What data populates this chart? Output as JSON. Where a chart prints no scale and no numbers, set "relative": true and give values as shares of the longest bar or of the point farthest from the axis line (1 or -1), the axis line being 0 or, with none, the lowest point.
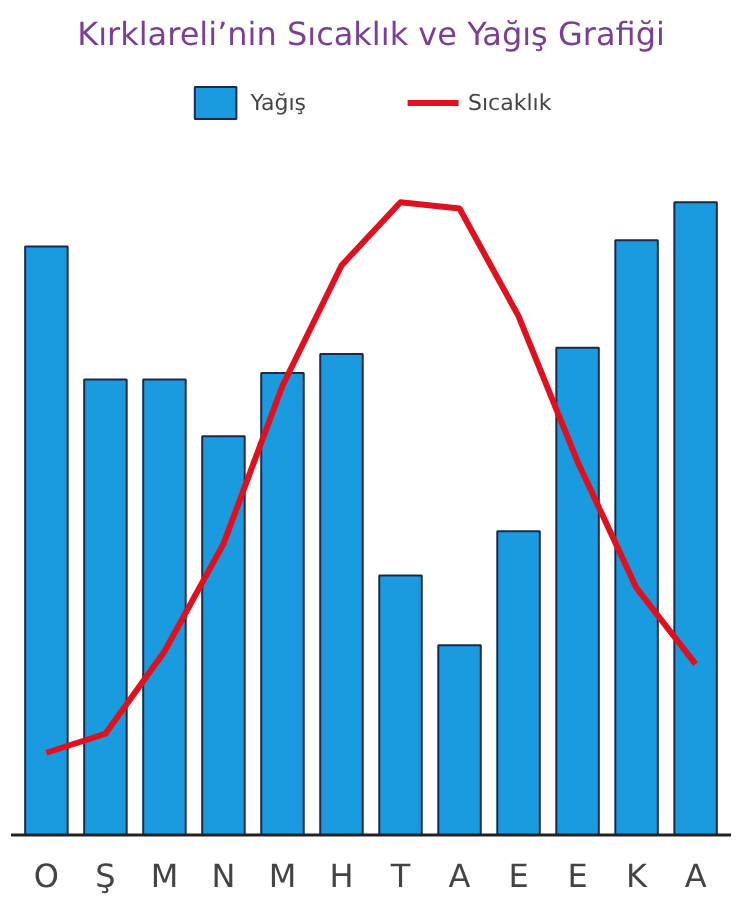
{
  "chart_data": {
    "type": "bar",
    "title": "Kırklareli’nin Sıcaklık ve Yağış Grafiği",
    "relative": true,
    "legend": "top",
    "categories": [
      "O",
      "Ş",
      "M",
      "N",
      "M",
      "H",
      "T",
      "A",
      "E",
      "E",
      "K",
      "A"
    ],
    "series": [
      {
        "name": "Yağış",
        "color": "#1a9be0",
        "values": [
          0.93,
          0.72,
          0.72,
          0.63,
          0.73,
          0.76,
          0.41,
          0.3,
          0.48,
          0.77,
          0.94,
          1
        ]
      },
      {
        "name": "Sıcaklık",
        "type": "line",
        "color": "#e0101e",
        "values": [
          0.13,
          0.16,
          0.29,
          0.46,
          0.71,
          0.9,
          1,
          0.99,
          0.82,
          0.59,
          0.39,
          0.27
        ]
      }
    ]
  }
}
